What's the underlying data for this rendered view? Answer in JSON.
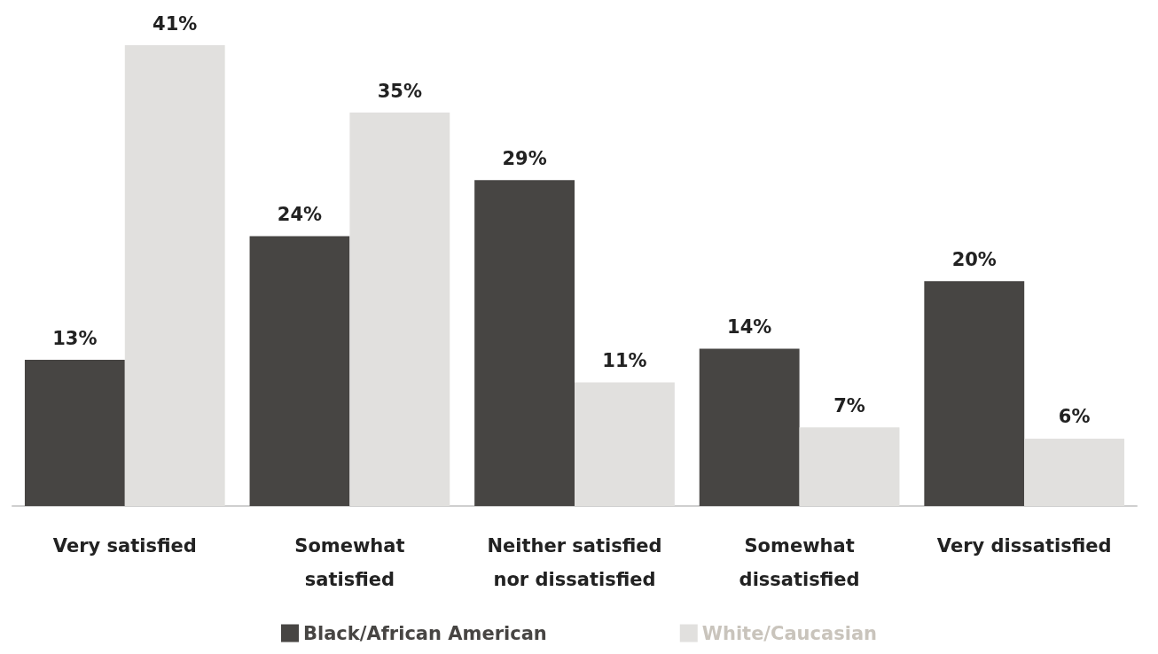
{
  "chart_data": {
    "type": "bar",
    "categories": [
      "Very satisfied",
      "Somewhat\nsatisfied",
      "Neither satisfied\nnor dissatisfied",
      "Somewhat\ndissatisfied",
      "Very dissatisfied"
    ],
    "series": [
      {
        "name": "Black/African American",
        "color": "#474543",
        "values": [
          13,
          24,
          29,
          14,
          20
        ],
        "value_labels": [
          "13%",
          "24%",
          "29%",
          "14%",
          "20%"
        ]
      },
      {
        "name": "White/Caucasian",
        "color": "#e1e0de",
        "values": [
          41,
          35,
          11,
          7,
          6
        ],
        "value_labels": [
          "41%",
          "35%",
          "11%",
          "7%",
          "6%"
        ]
      }
    ],
    "legend": "bottom"
  }
}
